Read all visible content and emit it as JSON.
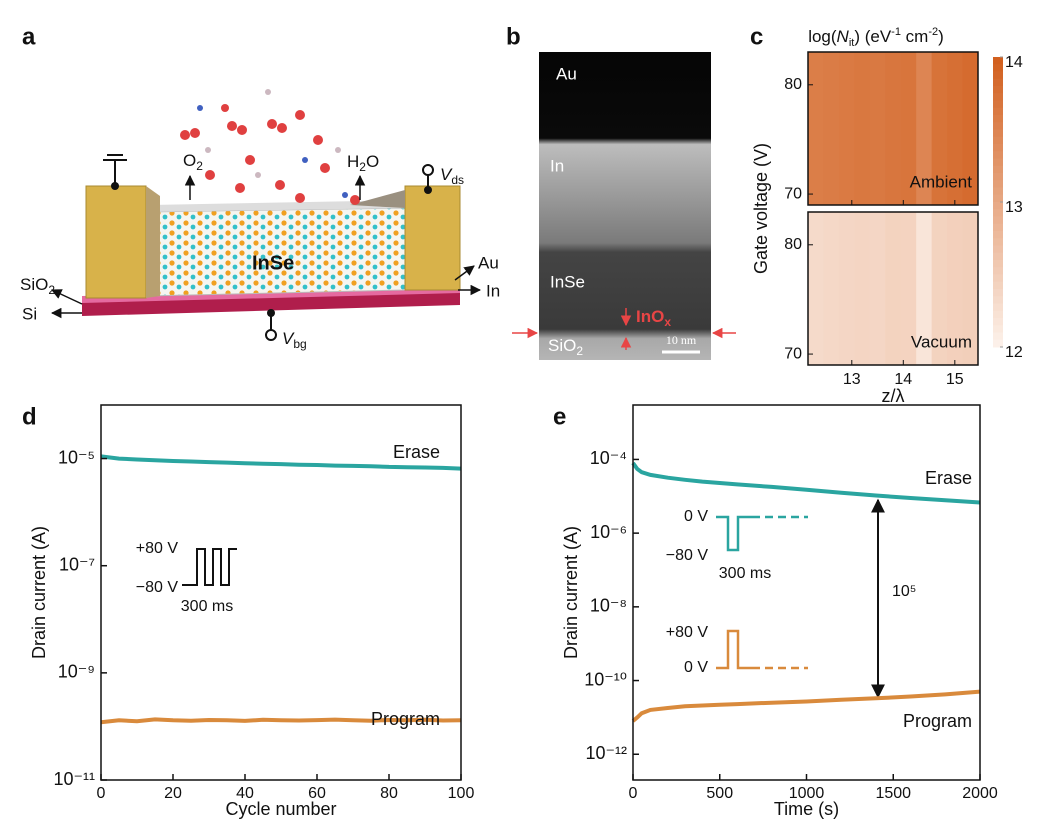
{
  "figure": {
    "panel_labels": [
      "a",
      "b",
      "c",
      "d",
      "e"
    ],
    "schematic": {
      "channel": "InSe",
      "oxide": [
        "SiO",
        "2"
      ],
      "substrate": "Si",
      "electrode_top": "Au",
      "electrode_bottom": "In",
      "oxygen": [
        "O",
        "2"
      ],
      "water": [
        "H",
        "2",
        "O"
      ],
      "drain": [
        "V",
        "ds"
      ],
      "gate": [
        "V",
        "bg"
      ]
    },
    "tem": {
      "layers": [
        "Au",
        "In",
        "InSe"
      ],
      "oxide_layer": [
        "InO",
        "x"
      ],
      "substrate": [
        "SiO",
        "2"
      ],
      "scale": "10 nm"
    }
  },
  "chart_data": [
    {
      "type": "heatmap",
      "title": [
        "log(",
        "N",
        "it",
        ") (eV",
        "-1",
        " cm",
        "-2",
        ")"
      ],
      "x_label": "z/λ",
      "y_label": "Gate voltage (V)",
      "x": [
        12.3,
        12.6,
        12.9,
        13.2,
        13.5,
        13.8,
        14.1,
        14.4,
        14.7,
        15.0,
        15.3
      ],
      "xlim": [
        12.15,
        15.45
      ],
      "xticks": [
        13,
        14,
        15
      ],
      "ylim": [
        69,
        83
      ],
      "yticks": [
        70,
        80
      ],
      "zlim": [
        12,
        14
      ],
      "zticks": [
        12,
        13,
        14
      ],
      "colors": [
        "#fdf4ee",
        "#d2601f"
      ],
      "series": [
        {
          "name": "Ambient",
          "values": [
            13.6,
            13.62,
            13.65,
            13.68,
            13.66,
            13.7,
            13.72,
            13.5,
            13.75,
            13.8,
            13.85
          ]
        },
        {
          "name": "Vacuum",
          "values": [
            12.35,
            12.38,
            12.4,
            12.42,
            12.4,
            12.45,
            12.44,
            12.2,
            12.45,
            12.48,
            12.5
          ]
        }
      ]
    },
    {
      "type": "line",
      "x_label": "Cycle number",
      "y_label": "Drain current (A)",
      "log_y": true,
      "xlim": [
        0,
        100
      ],
      "xticks": [
        0,
        20,
        40,
        60,
        80,
        100
      ],
      "ylim": [
        1e-11,
        0.0001
      ],
      "yticks": [
        {
          "value": 1e-11,
          "label": "10⁻¹¹"
        },
        {
          "value": 1e-09,
          "label": "10⁻⁹"
        },
        {
          "value": 1e-07,
          "label": "10⁻⁷"
        },
        {
          "value": 1e-05,
          "label": "10⁻⁵"
        }
      ],
      "x": [
        0,
        5,
        10,
        15,
        20,
        25,
        30,
        35,
        40,
        45,
        50,
        55,
        60,
        65,
        70,
        75,
        80,
        85,
        90,
        95,
        100
      ],
      "series": [
        {
          "name": "Erase",
          "color": "#2aa5a0",
          "values": [
            1.1e-05,
            1e-05,
            9.6e-06,
            9.3e-06,
            9e-06,
            8.8e-06,
            8.6e-06,
            8.4e-06,
            8.2e-06,
            8e-06,
            7.9e-06,
            7.7e-06,
            7.6e-06,
            7.4e-06,
            7.3e-06,
            7.2e-06,
            7e-06,
            6.9e-06,
            6.8e-06,
            6.7e-06,
            6.5e-06
          ]
        },
        {
          "name": "Program",
          "color": "#d98a3c",
          "values": [
            1.2e-10,
            1.3e-10,
            1.25e-10,
            1.35e-10,
            1.3e-10,
            1.28e-10,
            1.32e-10,
            1.3e-10,
            1.27e-10,
            1.33e-10,
            1.3e-10,
            1.29e-10,
            1.31e-10,
            1.34e-10,
            1.3e-10,
            1.28e-10,
            1.32e-10,
            1.3e-10,
            1.33e-10,
            1.29e-10,
            1.3e-10
          ]
        }
      ],
      "inset": [
        "+80 V",
        "−80 V",
        "300  ms"
      ]
    },
    {
      "type": "line",
      "x_label": "Time (s)",
      "y_label": "Drain current (A)",
      "log_y": true,
      "xlim": [
        0,
        2000
      ],
      "xticks": [
        0,
        500,
        1000,
        1500,
        2000
      ],
      "ylim": [
        2e-13,
        0.003
      ],
      "yticks": [
        {
          "value": 1e-12,
          "label": "10⁻¹²"
        },
        {
          "value": 1e-10,
          "label": "10⁻¹⁰"
        },
        {
          "value": 1e-08,
          "label": "10⁻⁸"
        },
        {
          "value": 1e-06,
          "label": "10⁻⁶"
        },
        {
          "value": 0.0001,
          "label": "10⁻⁴"
        }
      ],
      "x": [
        0,
        25,
        50,
        100,
        200,
        300,
        400,
        500,
        600,
        800,
        1000,
        1200,
        1400,
        1600,
        1800,
        2000
      ],
      "series": [
        {
          "name": "Erase",
          "color": "#2aa5a0",
          "values": [
            8e-05,
            5.5e-05,
            4.5e-05,
            3.8e-05,
            3.2e-05,
            2.8e-05,
            2.5e-05,
            2.3e-05,
            2.1e-05,
            1.8e-05,
            1.5e-05,
            1.25e-05,
            1.05e-05,
            9e-06,
            7.8e-06,
            6.8e-06
          ]
        },
        {
          "name": "Program",
          "color": "#d98a3c",
          "values": [
            8e-12,
            1e-11,
            1.3e-11,
            1.6e-11,
            1.8e-11,
            2e-11,
            2.1e-11,
            2.2e-11,
            2.3e-11,
            2.5e-11,
            2.7e-11,
            3e-11,
            3.3e-11,
            3.7e-11,
            4.2e-11,
            5e-11
          ]
        }
      ],
      "inset": [
        "0 V",
        "−80 V",
        "300  ms",
        "+80 V",
        "0 V"
      ],
      "ratio": "10⁵"
    }
  ]
}
